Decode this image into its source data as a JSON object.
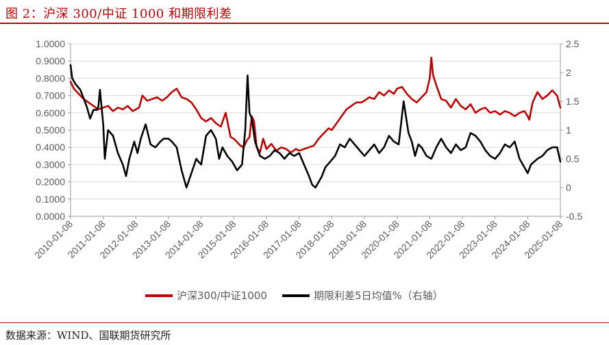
{
  "header": {
    "title": "图 2：沪深 300/中证 1000 和期限利差"
  },
  "footer": {
    "source": "数据来源：WIND、国联期货研究所"
  },
  "colors": {
    "accent": "#c00000",
    "series_red": "#c00000",
    "series_black": "#000000",
    "grid": "#d9d9d9"
  },
  "chart_data": {
    "type": "line",
    "title": "",
    "xlabel": "",
    "ylabel": "",
    "x_ticks": [
      "2010-01-08",
      "2011-01-08",
      "2012-01-08",
      "2013-01-08",
      "2014-01-08",
      "2015-01-08",
      "2016-01-08",
      "2017-01-08",
      "2018-01-08",
      "2019-01-08",
      "2020-01-08",
      "2021-01-08",
      "2022-01-08",
      "2023-01-08",
      "2024-01-08",
      "2025-01-08"
    ],
    "y_left_ticks": [
      "1.0000",
      "0.9000",
      "0.8000",
      "0.7000",
      "0.6000",
      "0.5000",
      "0.4000",
      "0.3000",
      "0.2000",
      "0.1000",
      "0.0000"
    ],
    "y_right_ticks": [
      "2.5",
      "2",
      "1.5",
      "1",
      "0.5",
      "0",
      "-0.5"
    ],
    "ylim_left": [
      0,
      1
    ],
    "ylim_right": [
      -0.5,
      2.5
    ],
    "xlim": [
      2010.0,
      2025.0
    ],
    "grid": "horizontal",
    "legend_position": "bottom",
    "series": [
      {
        "name": "沪深300/中证1000",
        "axis": "left",
        "x": [
          2010.0,
          2010.1,
          2010.25,
          2010.4,
          2010.55,
          2010.7,
          2010.85,
          2011.0,
          2011.15,
          2011.3,
          2011.45,
          2011.6,
          2011.75,
          2011.9,
          2012.0,
          2012.1,
          2012.2,
          2012.35,
          2012.5,
          2012.65,
          2012.8,
          2012.95,
          2013.1,
          2013.25,
          2013.4,
          2013.55,
          2013.7,
          2013.85,
          2014.0,
          2014.15,
          2014.3,
          2014.45,
          2014.6,
          2014.75,
          2014.9,
          2015.0,
          2015.1,
          2015.2,
          2015.3,
          2015.4,
          2015.48,
          2015.55,
          2015.62,
          2015.7,
          2015.8,
          2015.9,
          2016.0,
          2016.15,
          2016.3,
          2016.45,
          2016.6,
          2016.75,
          2016.9,
          2017.0,
          2017.15,
          2017.3,
          2017.45,
          2017.6,
          2017.75,
          2017.9,
          2018.0,
          2018.15,
          2018.3,
          2018.45,
          2018.6,
          2018.75,
          2018.9,
          2019.0,
          2019.15,
          2019.3,
          2019.45,
          2019.6,
          2019.75,
          2019.9,
          2020.0,
          2020.15,
          2020.3,
          2020.45,
          2020.6,
          2020.75,
          2020.9,
          2021.0,
          2021.05,
          2021.1,
          2021.2,
          2021.35,
          2021.5,
          2021.65,
          2021.8,
          2021.95,
          2022.1,
          2022.25,
          2022.4,
          2022.55,
          2022.7,
          2022.85,
          2023.0,
          2023.15,
          2023.3,
          2023.45,
          2023.6,
          2023.75,
          2023.9,
          2024.0,
          2024.05,
          2024.15,
          2024.3,
          2024.45,
          2024.6,
          2024.75,
          2024.9,
          2025.0
        ],
        "values": [
          0.78,
          0.74,
          0.71,
          0.68,
          0.66,
          0.64,
          0.62,
          0.63,
          0.64,
          0.61,
          0.63,
          0.62,
          0.64,
          0.61,
          0.62,
          0.63,
          0.7,
          0.67,
          0.68,
          0.69,
          0.67,
          0.69,
          0.72,
          0.74,
          0.69,
          0.68,
          0.66,
          0.62,
          0.57,
          0.55,
          0.57,
          0.54,
          0.52,
          0.6,
          0.46,
          0.45,
          0.43,
          0.41,
          0.4,
          0.44,
          0.46,
          0.58,
          0.55,
          0.4,
          0.37,
          0.45,
          0.39,
          0.42,
          0.38,
          0.4,
          0.39,
          0.37,
          0.39,
          0.38,
          0.39,
          0.4,
          0.41,
          0.45,
          0.48,
          0.51,
          0.5,
          0.54,
          0.58,
          0.62,
          0.64,
          0.66,
          0.66,
          0.67,
          0.69,
          0.68,
          0.72,
          0.7,
          0.73,
          0.71,
          0.74,
          0.75,
          0.71,
          0.68,
          0.66,
          0.69,
          0.72,
          0.8,
          0.92,
          0.82,
          0.76,
          0.68,
          0.67,
          0.63,
          0.68,
          0.64,
          0.62,
          0.65,
          0.6,
          0.62,
          0.63,
          0.6,
          0.61,
          0.59,
          0.61,
          0.6,
          0.58,
          0.6,
          0.61,
          0.58,
          0.56,
          0.66,
          0.72,
          0.68,
          0.7,
          0.73,
          0.7,
          0.63
        ]
      },
      {
        "name": "期限利差5日均值%（右轴）",
        "axis": "right",
        "x": [
          2010.0,
          2010.05,
          2010.15,
          2010.3,
          2010.4,
          2010.5,
          2010.6,
          2010.7,
          2010.8,
          2010.85,
          2010.9,
          2011.0,
          2011.05,
          2011.15,
          2011.3,
          2011.45,
          2011.6,
          2011.7,
          2011.8,
          2011.95,
          2012.05,
          2012.15,
          2012.3,
          2012.45,
          2012.6,
          2012.75,
          2012.85,
          2013.0,
          2013.1,
          2013.25,
          2013.4,
          2013.55,
          2013.7,
          2013.85,
          2013.92,
          2014.0,
          2014.15,
          2014.3,
          2014.45,
          2014.55,
          2014.65,
          2014.8,
          2014.95,
          2015.1,
          2015.25,
          2015.35,
          2015.42,
          2015.48,
          2015.55,
          2015.65,
          2015.8,
          2015.95,
          2016.1,
          2016.25,
          2016.4,
          2016.55,
          2016.7,
          2016.85,
          2017.0,
          2017.15,
          2017.3,
          2017.4,
          2017.5,
          2017.6,
          2017.7,
          2017.8,
          2017.95,
          2018.1,
          2018.25,
          2018.4,
          2018.55,
          2018.7,
          2018.85,
          2019.0,
          2019.15,
          2019.3,
          2019.45,
          2019.6,
          2019.75,
          2019.9,
          2020.05,
          2020.2,
          2020.35,
          2020.45,
          2020.55,
          2020.65,
          2020.75,
          2020.9,
          2021.05,
          2021.2,
          2021.35,
          2021.5,
          2021.65,
          2021.8,
          2021.95,
          2022.1,
          2022.25,
          2022.4,
          2022.55,
          2022.7,
          2022.85,
          2023.0,
          2023.15,
          2023.3,
          2023.45,
          2023.6,
          2023.75,
          2023.9,
          2024.0,
          2024.1,
          2024.2,
          2024.3,
          2024.45,
          2024.6,
          2024.75,
          2024.9,
          2025.0
        ],
        "values": [
          2.13,
          1.9,
          1.8,
          1.7,
          1.55,
          1.4,
          1.2,
          1.35,
          1.35,
          1.4,
          1.7,
          1.1,
          0.5,
          1.0,
          0.9,
          0.6,
          0.4,
          0.2,
          0.5,
          0.8,
          0.6,
          0.85,
          1.1,
          0.75,
          0.7,
          0.8,
          0.85,
          0.85,
          0.8,
          0.7,
          0.3,
          0.0,
          0.25,
          0.5,
          0.45,
          0.4,
          0.9,
          1.0,
          0.85,
          0.5,
          0.7,
          0.55,
          0.45,
          0.3,
          0.4,
          1.0,
          1.95,
          1.3,
          1.2,
          0.8,
          0.55,
          0.5,
          0.55,
          0.65,
          0.6,
          0.5,
          0.6,
          0.55,
          0.6,
          0.4,
          0.2,
          0.05,
          0.0,
          0.1,
          0.2,
          0.35,
          0.45,
          0.55,
          0.75,
          0.7,
          0.85,
          0.75,
          0.65,
          0.55,
          0.65,
          0.75,
          0.6,
          0.7,
          0.9,
          0.8,
          0.75,
          1.5,
          0.95,
          0.8,
          0.55,
          0.75,
          0.7,
          0.55,
          0.5,
          0.7,
          0.85,
          0.7,
          0.6,
          0.75,
          0.65,
          0.7,
          0.95,
          0.9,
          0.8,
          0.65,
          0.55,
          0.5,
          0.6,
          0.75,
          0.7,
          0.8,
          0.5,
          0.35,
          0.25,
          0.4,
          0.45,
          0.5,
          0.55,
          0.65,
          0.7,
          0.7,
          0.45
        ]
      }
    ]
  }
}
